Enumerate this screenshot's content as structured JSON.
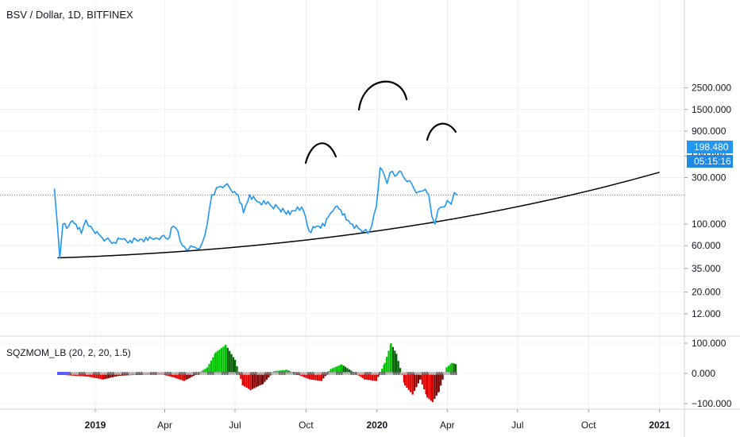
{
  "header": {
    "title": "BSV / Dollar, 1D, BITFINEX",
    "indicator": "SQZMOM_LB (20, 2, 20, 1.5)"
  },
  "price_badge": {
    "value": "198.480",
    "countdown": "05:15:16"
  },
  "colors": {
    "price_line": "#2196f3",
    "trendline": "#000000",
    "momentum_up": "#00c400",
    "momentum_down": "#e00000",
    "badge_bg": "#2196f3",
    "grid": "#eef0f3"
  },
  "chart_data": [
    {
      "type": "line",
      "scale": "log",
      "x_axis_labels": [
        "2019",
        "Apr",
        "Jul",
        "Oct",
        "2020",
        "Apr",
        "Jul",
        "Oct",
        "2021"
      ],
      "y_axis_labels": [
        "2500.000",
        "1500.000",
        "900.000",
        "500.000",
        "300.000",
        "100.000",
        "60.000",
        "35.000",
        "20.000",
        "12.000"
      ],
      "ylim": [
        7,
        2500
      ],
      "x": [
        "2018-11-09",
        "2018-11-13",
        "2018-11-16",
        "2018-11-20",
        "2018-11-25",
        "2018-11-30",
        "2018-12-07",
        "2018-12-14",
        "2018-12-20",
        "2018-12-26",
        "2019-01-01",
        "2019-01-08",
        "2019-01-15",
        "2019-01-25",
        "2019-02-05",
        "2019-02-15",
        "2019-02-28",
        "2019-03-10",
        "2019-03-20",
        "2019-03-28",
        "2019-04-05",
        "2019-04-12",
        "2019-04-18",
        "2019-04-24",
        "2019-05-02",
        "2019-05-10",
        "2019-05-16",
        "2019-05-20",
        "2019-05-26",
        "2019-06-01",
        "2019-06-10",
        "2019-06-18",
        "2019-06-24",
        "2019-06-28",
        "2019-07-05",
        "2019-07-12",
        "2019-07-20",
        "2019-07-30",
        "2019-08-10",
        "2019-08-25",
        "2019-09-10",
        "2019-09-20",
        "2019-09-28",
        "2019-10-05",
        "2019-10-15",
        "2019-10-25",
        "2019-11-02",
        "2019-11-08",
        "2019-11-15",
        "2019-11-22",
        "2019-11-30",
        "2019-12-08",
        "2019-12-15",
        "2019-12-20",
        "2019-12-25",
        "2019-12-31",
        "2020-01-05",
        "2020-01-10",
        "2020-01-14",
        "2020-01-18",
        "2020-01-24",
        "2020-01-30",
        "2020-02-06",
        "2020-02-12",
        "2020-02-18",
        "2020-02-24",
        "2020-03-01",
        "2020-03-08",
        "2020-03-12",
        "2020-03-16",
        "2020-03-20",
        "2020-03-26",
        "2020-04-01",
        "2020-04-06",
        "2020-04-10",
        "2020-04-14"
      ],
      "y": [
        230,
        95,
        45,
        100,
        90,
        105,
        100,
        80,
        110,
        95,
        80,
        75,
        70,
        65,
        70,
        68,
        70,
        68,
        72,
        75,
        70,
        95,
        85,
        60,
        55,
        58,
        56,
        65,
        100,
        200,
        240,
        250,
        235,
        210,
        200,
        130,
        200,
        170,
        160,
        150,
        125,
        150,
        135,
        85,
        95,
        95,
        130,
        150,
        140,
        110,
        100,
        90,
        85,
        80,
        95,
        150,
        380,
        325,
        260,
        340,
        310,
        350,
        290,
        280,
        230,
        215,
        220,
        200,
        120,
        100,
        140,
        150,
        175,
        160,
        210,
        198.48
      ],
      "trendline": {
        "points": [
          [
            "2018-11-13",
            45
          ],
          [
            "2020-01-01",
            85
          ],
          [
            "2021-01-01",
            340
          ]
        ]
      },
      "annotations": [
        "arc",
        "arc",
        "arc"
      ],
      "last_value": 198.48
    },
    {
      "type": "bar",
      "name": "SQZMOM_LB (20, 2, 20, 1.5)",
      "y_axis_labels": [
        "100.000",
        "0.000",
        "−100.000"
      ],
      "ylim": [
        -115,
        115
      ],
      "x": [
        "2018-11-20",
        "2018-12-05",
        "2018-12-20",
        "2019-01-10",
        "2019-01-30",
        "2019-02-20",
        "2019-03-10",
        "2019-03-25",
        "2019-04-10",
        "2019-04-25",
        "2019-05-10",
        "2019-05-25",
        "2019-06-05",
        "2019-06-18",
        "2019-06-30",
        "2019-07-10",
        "2019-07-20",
        "2019-08-05",
        "2019-08-20",
        "2019-09-05",
        "2019-09-20",
        "2019-10-05",
        "2019-10-20",
        "2019-11-01",
        "2019-11-15",
        "2019-11-30",
        "2019-12-15",
        "2019-12-30",
        "2020-01-10",
        "2020-01-18",
        "2020-01-25",
        "2020-02-05",
        "2020-02-15",
        "2020-02-25",
        "2020-03-05",
        "2020-03-12",
        "2020-03-20",
        "2020-03-30",
        "2020-04-06",
        "2020-04-12"
      ],
      "values": [
        -5,
        -8,
        -10,
        -20,
        -8,
        -5,
        -3,
        -2,
        -12,
        -25,
        -5,
        20,
        70,
        95,
        45,
        -40,
        -55,
        -35,
        8,
        12,
        -5,
        -20,
        -25,
        15,
        30,
        5,
        -20,
        -25,
        35,
        100,
        65,
        -40,
        -70,
        -20,
        -80,
        -95,
        -60,
        20,
        35,
        30
      ]
    }
  ]
}
